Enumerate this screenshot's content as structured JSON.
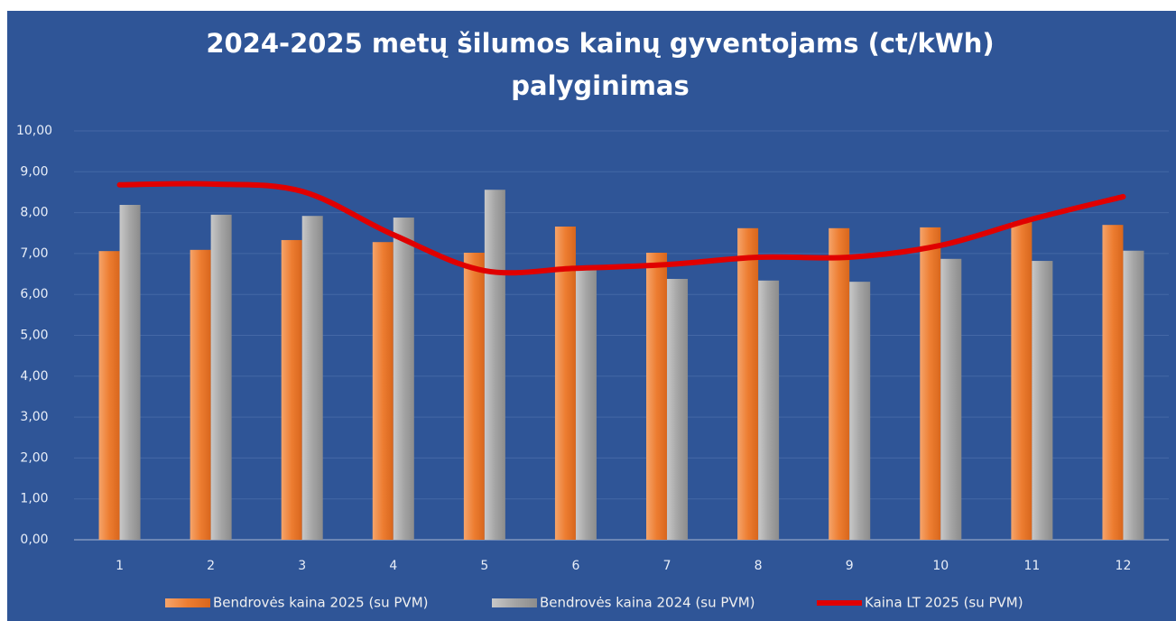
{
  "chart_data": {
    "type": "bar",
    "title": [
      "2024-2025  metų  šilumos kainų gyventojams (ct/kWh)",
      "palyginimas"
    ],
    "categories": [
      "1",
      "2",
      "3",
      "4",
      "5",
      "6",
      "7",
      "8",
      "9",
      "10",
      "11",
      "12"
    ],
    "series": [
      {
        "name": "Bendrovės kaina 2025 (su PVM)",
        "color": "#ed7d31",
        "kind": "bar",
        "values": [
          7.06,
          7.09,
          7.33,
          7.28,
          7.02,
          7.66,
          7.02,
          7.62,
          7.62,
          7.64,
          7.77,
          7.7
        ]
      },
      {
        "name": "Bendrovės kaina 2024 (su PVM)",
        "color": "#a5a5a5",
        "kind": "bar",
        "values": [
          8.19,
          7.95,
          7.92,
          7.88,
          8.56,
          6.62,
          6.38,
          6.34,
          6.31,
          6.87,
          6.82,
          7.07
        ]
      },
      {
        "name": "Kaina LT 2025 (su PVM)",
        "color": "#e00000",
        "kind": "line",
        "values": [
          8.68,
          8.7,
          8.52,
          7.46,
          6.58,
          6.64,
          6.73,
          6.91,
          6.91,
          7.2,
          7.84,
          8.39
        ]
      }
    ],
    "ylim": [
      0,
      10
    ],
    "yticks": [
      {
        "value": 0,
        "label": "0,00"
      },
      {
        "value": 1,
        "label": "1,00"
      },
      {
        "value": 2,
        "label": "2,00"
      },
      {
        "value": 3,
        "label": "3,00"
      },
      {
        "value": 4,
        "label": "4,00"
      },
      {
        "value": 5,
        "label": "5,00"
      },
      {
        "value": 6,
        "label": "6,00"
      },
      {
        "value": 7,
        "label": "7,00"
      },
      {
        "value": 8,
        "label": "8,00"
      },
      {
        "value": 9,
        "label": "9,00"
      },
      {
        "value": 10,
        "label": "10,00"
      }
    ],
    "grid": true,
    "legend": "bottom"
  }
}
